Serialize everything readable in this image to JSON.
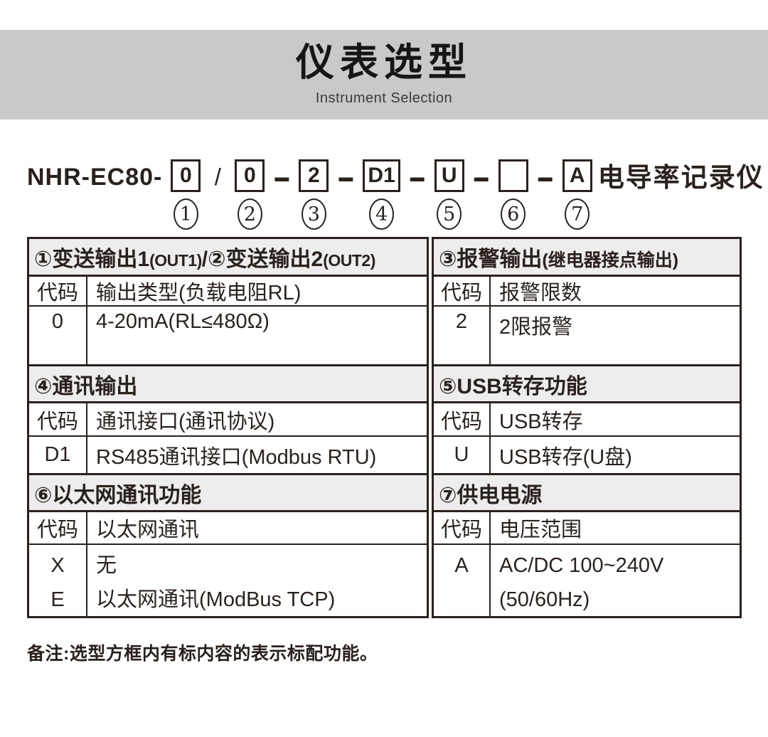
{
  "header": {
    "title": "仪表选型",
    "subtitle": "Instrument Selection"
  },
  "model_code": {
    "prefix": "NHR-EC80-",
    "suffix": "电导率记录仪",
    "boxes": [
      {
        "value": "0",
        "sep_after": "/"
      },
      {
        "value": "0",
        "sep_after": "–"
      },
      {
        "value": "2",
        "sep_after": "–"
      },
      {
        "value": "D1",
        "sep_after": "–"
      },
      {
        "value": "U",
        "sep_after": "–"
      },
      {
        "value": "",
        "sep_after": "–"
      },
      {
        "value": "A",
        "sep_after": ""
      }
    ],
    "position_labels": [
      "1",
      "2",
      "3",
      "4",
      "5",
      "6",
      "7"
    ]
  },
  "selection_table": {
    "left": {
      "section1": {
        "title_segments": [
          {
            "t": "①变送输出1",
            "k": "zh"
          },
          {
            "t": "(OUT1)",
            "k": "en"
          },
          {
            "t": "/",
            "k": "zh"
          },
          {
            "t": "②变送输出2",
            "k": "zh"
          },
          {
            "t": "(OUT2)",
            "k": "en"
          }
        ],
        "code_header": "代码",
        "desc_header": "输出类型(负载电阻RL)",
        "row": {
          "code": "0",
          "desc": "4-20mA(RL≤480Ω)"
        }
      },
      "section2": {
        "title": "④通讯输出",
        "code_header": "代码",
        "desc_header": "通讯接口(通讯协议)",
        "row": {
          "code": "D1",
          "desc": "RS485通讯接口(Modbus RTU)"
        }
      },
      "section3": {
        "title": "⑥以太网通讯功能",
        "code_header": "代码",
        "desc_header": "以太网通讯",
        "rows": [
          {
            "code": "X",
            "desc": "无"
          },
          {
            "code": "E",
            "desc": "以太网通讯(ModBus TCP)"
          }
        ]
      }
    },
    "right": {
      "section1": {
        "title_segments": [
          {
            "t": "③报警输出",
            "k": "zh"
          },
          {
            "t": "(继电器接点输出)",
            "k": "zh-sm"
          }
        ],
        "code_header": "代码",
        "desc_header": "报警限数",
        "row": {
          "code": "2",
          "desc": "2限报警"
        }
      },
      "section2": {
        "title": "⑤USB转存功能",
        "code_header": "代码",
        "desc_header": "USB转存",
        "row": {
          "code": "U",
          "desc": "USB转存(U盘)"
        }
      },
      "section3": {
        "title": "⑦供电电源",
        "code_header": "代码",
        "desc_header": "电压范围",
        "row": {
          "code": "A",
          "desc_lines": [
            "AC/DC 100~240V",
            "(50/60Hz)"
          ]
        }
      }
    }
  },
  "note": "备注:选型方框内有标内容的表示标配功能。"
}
